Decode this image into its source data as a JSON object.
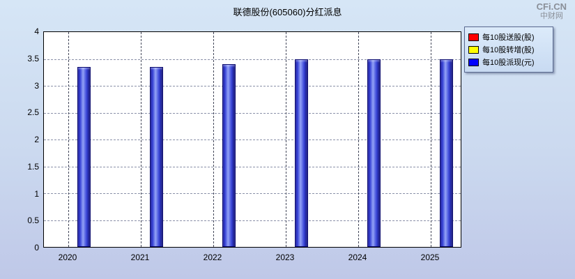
{
  "watermark": {
    "brand": "CFi.CN",
    "sub": "中财网"
  },
  "chart_data": {
    "type": "bar",
    "title": "联德股份(605060)分红派息",
    "categories": [
      "2020",
      "2021",
      "2022",
      "2023",
      "2024",
      "2025"
    ],
    "series": [
      {
        "name": "每10股送股(股)",
        "color": "#ff0000",
        "values": [
          0,
          0,
          0,
          0,
          0,
          0
        ]
      },
      {
        "name": "每10股转增(股)",
        "color": "#ffff00",
        "values": [
          0,
          0,
          0,
          0,
          0,
          0
        ]
      },
      {
        "name": "每10股派现(元)",
        "color": "#0000ff",
        "values": [
          3.35,
          3.35,
          3.4,
          3.5,
          3.5,
          3.5
        ]
      }
    ],
    "ylim": [
      0,
      4
    ],
    "ytick_step": 0.5,
    "grid": "dashed",
    "legend_position": "top-right",
    "bar_color": "#2a2ac0"
  }
}
